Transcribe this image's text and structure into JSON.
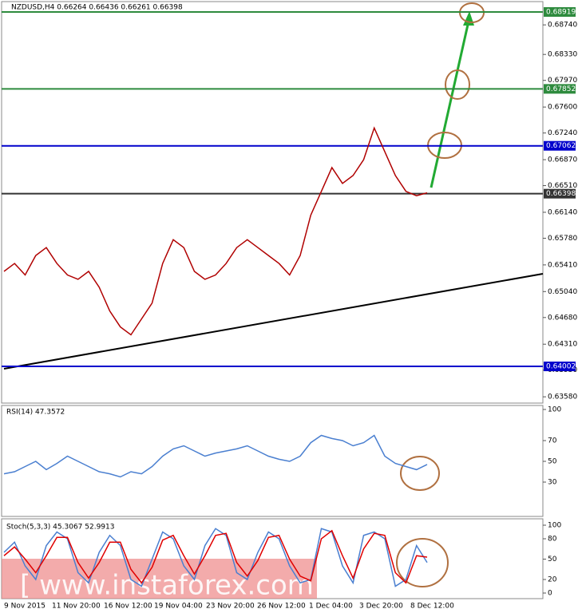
{
  "header": "NZDUSD,H4  0.66264 0.66436 0.66261 0.66398",
  "watermark": "[  www.instaforex.com  ]",
  "x_labels": [
    "9 Nov 2015",
    "11 Nov 20:00",
    "16 Nov 12:00",
    "19 Nov 04:00",
    "23 Nov 20:00",
    "26 Nov 12:00",
    "1 Dec 04:00",
    "3 Dec 20:00",
    "8 Dec 12:00"
  ],
  "chart_data": [
    {
      "type": "line",
      "series": [
        {
          "color": "#b00000",
          "values": [
            0.6532,
            0.6543,
            0.6527,
            0.6554,
            0.6565,
            0.6543,
            0.6527,
            0.6521,
            0.6532,
            0.651,
            0.6477,
            0.6455,
            0.6444,
            0.6466,
            0.6488,
            0.6543,
            0.6576,
            0.6565,
            0.6532,
            0.6521,
            0.6527,
            0.6543,
            0.6565,
            0.6576,
            0.6565,
            0.6554,
            0.6543,
            0.6527,
            0.6554,
            0.661,
            0.6643,
            0.6676,
            0.6654,
            0.6665,
            0.6687,
            0.6731,
            0.6698,
            0.6665,
            0.6643,
            0.6637,
            0.6641
          ]
        }
      ],
      "ylim": [
        0.63493,
        0.69063
      ],
      "yticks": [
        {
          "value": 0.6874,
          "label": "0.68740"
        },
        {
          "value": 0.6833,
          "label": "0.68330"
        },
        {
          "value": 0.6797,
          "label": "0.67970"
        },
        {
          "value": 0.676,
          "label": "0.67600"
        },
        {
          "value": 0.6724,
          "label": "0.67240"
        },
        {
          "value": 0.6687,
          "label": "0.66870"
        },
        {
          "value": 0.6651,
          "label": "0.66510"
        },
        {
          "value": 0.6614,
          "label": "0.66140"
        },
        {
          "value": 0.6578,
          "label": "0.65780"
        },
        {
          "value": 0.6541,
          "label": "0.65410"
        },
        {
          "value": 0.6504,
          "label": "0.65040"
        },
        {
          "value": 0.6468,
          "label": "0.64680"
        },
        {
          "value": 0.6431,
          "label": "0.64310"
        },
        {
          "value": 0.6395,
          "label": "0.63950"
        },
        {
          "value": 0.6358,
          "label": "0.63580"
        }
      ],
      "levels": [
        {
          "value": 0.68919,
          "color": "#2e8b3e"
        },
        {
          "value": 0.67852,
          "color": "#2e8b3e"
        },
        {
          "value": 0.67062,
          "color": "#0000cc"
        },
        {
          "value": 0.66398,
          "color": "#333333"
        },
        {
          "value": 0.64002,
          "color": "#0000cc"
        }
      ]
    },
    {
      "type": "line",
      "title": "RSI(14) 47.3572",
      "series": [
        {
          "color": "#4a7fd0",
          "values": [
            38,
            40,
            45,
            50,
            42,
            48,
            55,
            50,
            45,
            40,
            38,
            35,
            40,
            38,
            45,
            55,
            62,
            65,
            60,
            55,
            58,
            60,
            62,
            65,
            60,
            55,
            52,
            50,
            55,
            68,
            75,
            72,
            70,
            65,
            68,
            75,
            55,
            48,
            45,
            42,
            47
          ]
        }
      ],
      "ylim": [
        0,
        100
      ],
      "yticks": [
        100,
        70,
        50,
        30
      ]
    },
    {
      "type": "line",
      "title": "Stoch(5,3,3) 45.3067 52.9913",
      "series": [
        {
          "color": "#4a7fd0",
          "values": [
            60,
            75,
            40,
            20,
            70,
            90,
            80,
            30,
            15,
            60,
            85,
            70,
            20,
            10,
            50,
            90,
            80,
            40,
            20,
            70,
            95,
            85,
            30,
            20,
            60,
            90,
            80,
            40,
            15,
            20,
            95,
            90,
            40,
            15,
            85,
            90,
            80,
            10,
            20,
            70,
            45
          ]
        },
        {
          "color": "#e00000",
          "values": [
            55,
            68,
            50,
            30,
            55,
            82,
            82,
            45,
            22,
            45,
            75,
            75,
            35,
            15,
            38,
            78,
            85,
            55,
            28,
            55,
            85,
            88,
            45,
            25,
            48,
            82,
            85,
            50,
            25,
            18,
            80,
            92,
            55,
            22,
            65,
            88,
            85,
            30,
            15,
            55,
            53
          ]
        }
      ],
      "ylim": [
        0,
        100
      ],
      "yticks": [
        100,
        80,
        50,
        20,
        0
      ]
    }
  ]
}
